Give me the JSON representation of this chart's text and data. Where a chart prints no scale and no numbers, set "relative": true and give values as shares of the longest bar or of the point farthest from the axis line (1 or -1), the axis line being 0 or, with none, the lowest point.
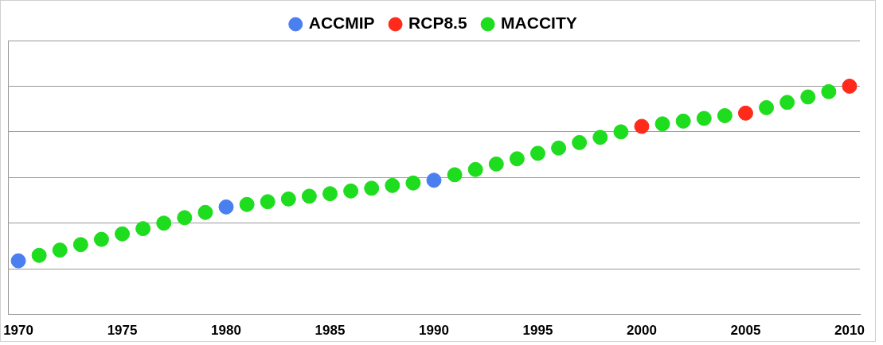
{
  "chart_data": {
    "type": "scatter",
    "relative": true,
    "marker": "circle",
    "legend": "top",
    "grid": "y",
    "xlim": [
      1969.5,
      2010.5
    ],
    "xticks": [
      1970,
      1975,
      1980,
      1985,
      1990,
      1995,
      2000,
      2005,
      2010
    ],
    "series": [
      {
        "name": "ACCMIP",
        "color": "#4a7ff0",
        "x": [
          1970,
          1980,
          1990
        ],
        "values": [
          0.235,
          0.471,
          0.588
        ]
      },
      {
        "name": "RCP8.5",
        "color": "#ff2a1a",
        "x": [
          2000,
          2005,
          2010
        ],
        "values": [
          0.824,
          0.882,
          1
        ]
      },
      {
        "name": "MACCITY",
        "color": "#1edc1e",
        "x": [
          1971,
          1972,
          1973,
          1974,
          1975,
          1976,
          1977,
          1978,
          1979,
          1981,
          1982,
          1983,
          1984,
          1985,
          1986,
          1987,
          1988,
          1989,
          1991,
          1992,
          1993,
          1994,
          1995,
          1996,
          1997,
          1998,
          1999,
          2001,
          2002,
          2003,
          2004,
          2006,
          2007,
          2008,
          2009
        ],
        "values": [
          0.259,
          0.282,
          0.306,
          0.329,
          0.353,
          0.376,
          0.4,
          0.424,
          0.447,
          0.482,
          0.494,
          0.506,
          0.518,
          0.529,
          0.541,
          0.553,
          0.565,
          0.576,
          0.612,
          0.635,
          0.659,
          0.682,
          0.706,
          0.729,
          0.753,
          0.776,
          0.8,
          0.835,
          0.847,
          0.859,
          0.871,
          0.906,
          0.929,
          0.953,
          0.976
        ]
      }
    ]
  }
}
